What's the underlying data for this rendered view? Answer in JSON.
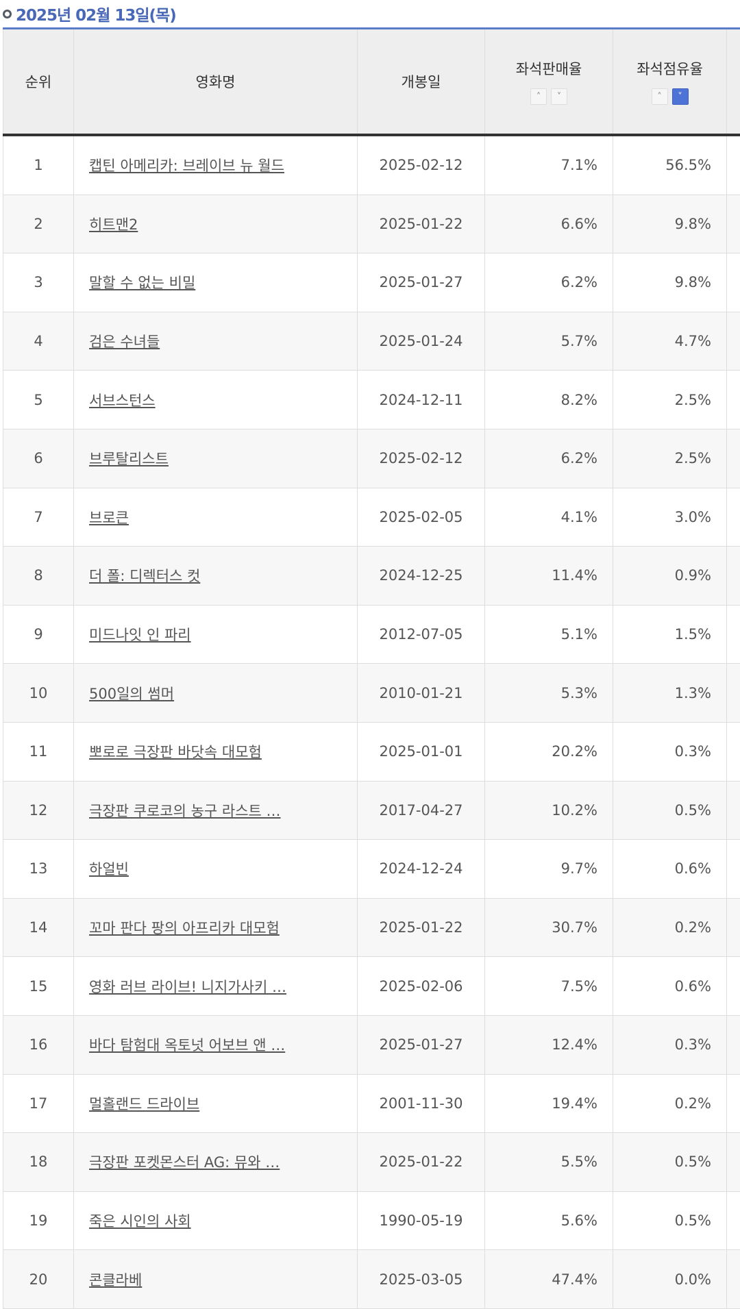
{
  "date_label": "2025년 02월 13일(목)",
  "headers": {
    "rank": "순위",
    "title": "영화명",
    "open_date": "개봉일",
    "sales_rate": "좌석판매율",
    "share_rate": "좌석점유율"
  },
  "sort_icons": {
    "up": "˄",
    "down": "˅"
  },
  "accent_color": "#4e73d6",
  "rows": [
    {
      "rank": "1",
      "title": "캡틴 아메리카: 브레이브 뉴 월드",
      "date": "2025-02-12",
      "sales": "7.1%",
      "share": "56.5%"
    },
    {
      "rank": "2",
      "title": "히트맨2",
      "date": "2025-01-22",
      "sales": "6.6%",
      "share": "9.8%"
    },
    {
      "rank": "3",
      "title": "말할 수 없는 비밀",
      "date": "2025-01-27",
      "sales": "6.2%",
      "share": "9.8%"
    },
    {
      "rank": "4",
      "title": "검은 수녀들",
      "date": "2025-01-24",
      "sales": "5.7%",
      "share": "4.7%"
    },
    {
      "rank": "5",
      "title": "서브스턴스",
      "date": "2024-12-11",
      "sales": "8.2%",
      "share": "2.5%"
    },
    {
      "rank": "6",
      "title": "브루탈리스트",
      "date": "2025-02-12",
      "sales": "6.2%",
      "share": "2.5%"
    },
    {
      "rank": "7",
      "title": "브로큰",
      "date": "2025-02-05",
      "sales": "4.1%",
      "share": "3.0%"
    },
    {
      "rank": "8",
      "title": "더 폴: 디렉터스 컷",
      "date": "2024-12-25",
      "sales": "11.4%",
      "share": "0.9%"
    },
    {
      "rank": "9",
      "title": "미드나잇 인 파리",
      "date": "2012-07-05",
      "sales": "5.1%",
      "share": "1.5%"
    },
    {
      "rank": "10",
      "title": "500일의 썸머",
      "date": "2010-01-21",
      "sales": "5.3%",
      "share": "1.3%"
    },
    {
      "rank": "11",
      "title": "뽀로로 극장판 바닷속 대모험",
      "date": "2025-01-01",
      "sales": "20.2%",
      "share": "0.3%"
    },
    {
      "rank": "12",
      "title": "극장판 쿠로코의 농구 라스트 …",
      "date": "2017-04-27",
      "sales": "10.2%",
      "share": "0.5%"
    },
    {
      "rank": "13",
      "title": "하얼빈",
      "date": "2024-12-24",
      "sales": "9.7%",
      "share": "0.6%"
    },
    {
      "rank": "14",
      "title": "꼬마 판다 팡의 아프리카 대모험",
      "date": "2025-01-22",
      "sales": "30.7%",
      "share": "0.2%"
    },
    {
      "rank": "15",
      "title": "영화 러브 라이브! 니지가사키 …",
      "date": "2025-02-06",
      "sales": "7.5%",
      "share": "0.6%"
    },
    {
      "rank": "16",
      "title": "바다 탐험대 옥토넛 어보브 앤 …",
      "date": "2025-01-27",
      "sales": "12.4%",
      "share": "0.3%"
    },
    {
      "rank": "17",
      "title": "멀홀랜드 드라이브",
      "date": "2001-11-30",
      "sales": "19.4%",
      "share": "0.2%"
    },
    {
      "rank": "18",
      "title": "극장판 포켓몬스터 AG: 뮤와 …",
      "date": "2025-01-22",
      "sales": "5.5%",
      "share": "0.5%"
    },
    {
      "rank": "19",
      "title": "죽은 시인의 사회",
      "date": "1990-05-19",
      "sales": "5.6%",
      "share": "0.5%"
    },
    {
      "rank": "20",
      "title": "콘클라베",
      "date": "2025-03-05",
      "sales": "47.4%",
      "share": "0.0%"
    }
  ]
}
